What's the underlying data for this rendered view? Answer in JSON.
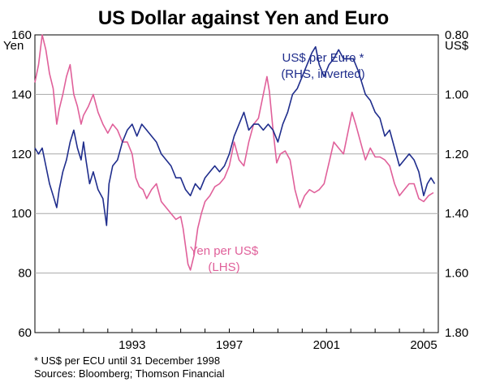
{
  "chart_data": {
    "type": "line",
    "title": "US Dollar against Yen and Euro",
    "left_axis": {
      "unit": "Yen",
      "ylim": [
        60,
        160
      ],
      "ticks": [
        60,
        80,
        100,
        120,
        140,
        160
      ],
      "tick_labels": [
        "60",
        "80",
        "100",
        "120",
        "140",
        "160"
      ]
    },
    "right_axis": {
      "unit": "US$",
      "inverted": true,
      "ylim": [
        0.8,
        1.8
      ],
      "ticks": [
        0.8,
        1.0,
        1.2,
        1.4,
        1.6,
        1.8
      ],
      "tick_labels": [
        "0.80",
        "1.00",
        "1.20",
        "1.40",
        "1.60",
        "1.80"
      ]
    },
    "x_axis": {
      "xlim": [
        1989.0,
        2005.6
      ],
      "labeled_ticks": [
        1993,
        1997,
        2001,
        2005
      ],
      "tick_labels": [
        "1993",
        "1997",
        "2001",
        "2005"
      ]
    },
    "grid": true,
    "series": [
      {
        "name": "Yen per US$",
        "sub": "(LHS)",
        "axis": "left",
        "color": "#e0609a",
        "points": [
          [
            1989.0,
            144
          ],
          [
            1989.15,
            150
          ],
          [
            1989.3,
            160
          ],
          [
            1989.45,
            155
          ],
          [
            1989.6,
            147
          ],
          [
            1989.75,
            142
          ],
          [
            1989.9,
            130
          ],
          [
            1990.0,
            135
          ],
          [
            1990.15,
            140
          ],
          [
            1990.3,
            146
          ],
          [
            1990.45,
            150
          ],
          [
            1990.6,
            140
          ],
          [
            1990.75,
            136
          ],
          [
            1990.9,
            130
          ],
          [
            1991.0,
            133
          ],
          [
            1991.2,
            136
          ],
          [
            1991.4,
            140
          ],
          [
            1991.6,
            134
          ],
          [
            1991.8,
            130
          ],
          [
            1992.0,
            127
          ],
          [
            1992.2,
            130
          ],
          [
            1992.4,
            128
          ],
          [
            1992.6,
            124
          ],
          [
            1992.8,
            124
          ],
          [
            1993.0,
            120
          ],
          [
            1993.15,
            112
          ],
          [
            1993.3,
            109
          ],
          [
            1993.45,
            108
          ],
          [
            1993.6,
            105
          ],
          [
            1993.8,
            108
          ],
          [
            1994.0,
            110
          ],
          [
            1994.2,
            104
          ],
          [
            1994.4,
            102
          ],
          [
            1994.6,
            100
          ],
          [
            1994.8,
            98
          ],
          [
            1995.0,
            99
          ],
          [
            1995.1,
            95
          ],
          [
            1995.2,
            89
          ],
          [
            1995.3,
            83
          ],
          [
            1995.4,
            81
          ],
          [
            1995.55,
            86
          ],
          [
            1995.7,
            95
          ],
          [
            1995.85,
            100
          ],
          [
            1996.0,
            104
          ],
          [
            1996.2,
            106
          ],
          [
            1996.4,
            109
          ],
          [
            1996.6,
            110
          ],
          [
            1996.8,
            112
          ],
          [
            1997.0,
            116
          ],
          [
            1997.2,
            124
          ],
          [
            1997.4,
            118
          ],
          [
            1997.6,
            116
          ],
          [
            1997.8,
            124
          ],
          [
            1998.0,
            130
          ],
          [
            1998.2,
            132
          ],
          [
            1998.4,
            140
          ],
          [
            1998.55,
            146
          ],
          [
            1998.65,
            141
          ],
          [
            1998.8,
            128
          ],
          [
            1998.95,
            117
          ],
          [
            1999.1,
            120
          ],
          [
            1999.3,
            121
          ],
          [
            1999.5,
            118
          ],
          [
            1999.7,
            108
          ],
          [
            1999.9,
            102
          ],
          [
            2000.1,
            106
          ],
          [
            2000.3,
            108
          ],
          [
            2000.5,
            107
          ],
          [
            2000.7,
            108
          ],
          [
            2000.9,
            110
          ],
          [
            2001.1,
            117
          ],
          [
            2001.3,
            124
          ],
          [
            2001.5,
            122
          ],
          [
            2001.7,
            120
          ],
          [
            2001.9,
            128
          ],
          [
            2002.05,
            134
          ],
          [
            2002.2,
            130
          ],
          [
            2002.4,
            124
          ],
          [
            2002.6,
            118
          ],
          [
            2002.8,
            122
          ],
          [
            2003.0,
            119
          ],
          [
            2003.2,
            119
          ],
          [
            2003.4,
            118
          ],
          [
            2003.6,
            116
          ],
          [
            2003.8,
            110
          ],
          [
            2004.0,
            106
          ],
          [
            2004.2,
            108
          ],
          [
            2004.4,
            110
          ],
          [
            2004.6,
            110
          ],
          [
            2004.8,
            105
          ],
          [
            2005.0,
            104
          ],
          [
            2005.2,
            106
          ],
          [
            2005.4,
            107
          ]
        ]
      },
      {
        "name": "US$ per Euro *",
        "sub": "(RHS, inverted)",
        "axis": "right",
        "color": "#1f2d8c",
        "points": [
          [
            1989.0,
            1.18
          ],
          [
            1989.15,
            1.2
          ],
          [
            1989.3,
            1.18
          ],
          [
            1989.45,
            1.24
          ],
          [
            1989.6,
            1.3
          ],
          [
            1989.75,
            1.34
          ],
          [
            1989.9,
            1.38
          ],
          [
            1990.0,
            1.32
          ],
          [
            1990.15,
            1.26
          ],
          [
            1990.3,
            1.22
          ],
          [
            1990.45,
            1.16
          ],
          [
            1990.6,
            1.12
          ],
          [
            1990.75,
            1.18
          ],
          [
            1990.9,
            1.22
          ],
          [
            1991.0,
            1.16
          ],
          [
            1991.1,
            1.22
          ],
          [
            1991.25,
            1.3
          ],
          [
            1991.4,
            1.26
          ],
          [
            1991.6,
            1.32
          ],
          [
            1991.8,
            1.35
          ],
          [
            1991.95,
            1.44
          ],
          [
            1992.05,
            1.3
          ],
          [
            1992.2,
            1.24
          ],
          [
            1992.4,
            1.22
          ],
          [
            1992.6,
            1.16
          ],
          [
            1992.8,
            1.12
          ],
          [
            1993.0,
            1.1
          ],
          [
            1993.2,
            1.14
          ],
          [
            1993.4,
            1.1
          ],
          [
            1993.6,
            1.12
          ],
          [
            1993.8,
            1.14
          ],
          [
            1994.0,
            1.16
          ],
          [
            1994.2,
            1.2
          ],
          [
            1994.4,
            1.22
          ],
          [
            1994.6,
            1.24
          ],
          [
            1994.8,
            1.28
          ],
          [
            1995.0,
            1.28
          ],
          [
            1995.2,
            1.32
          ],
          [
            1995.4,
            1.34
          ],
          [
            1995.6,
            1.3
          ],
          [
            1995.8,
            1.32
          ],
          [
            1996.0,
            1.28
          ],
          [
            1996.2,
            1.26
          ],
          [
            1996.4,
            1.24
          ],
          [
            1996.6,
            1.26
          ],
          [
            1996.8,
            1.24
          ],
          [
            1997.0,
            1.2
          ],
          [
            1997.2,
            1.14
          ],
          [
            1997.4,
            1.1
          ],
          [
            1997.6,
            1.06
          ],
          [
            1997.8,
            1.12
          ],
          [
            1998.0,
            1.1
          ],
          [
            1998.2,
            1.1
          ],
          [
            1998.4,
            1.12
          ],
          [
            1998.6,
            1.1
          ],
          [
            1998.8,
            1.12
          ],
          [
            1999.0,
            1.16
          ],
          [
            1999.2,
            1.1
          ],
          [
            1999.4,
            1.06
          ],
          [
            1999.6,
            1.0
          ],
          [
            1999.8,
            0.98
          ],
          [
            2000.0,
            0.94
          ],
          [
            2000.2,
            0.9
          ],
          [
            2000.4,
            0.86
          ],
          [
            2000.55,
            0.84
          ],
          [
            2000.7,
            0.9
          ],
          [
            2000.9,
            0.94
          ],
          [
            2001.1,
            0.9
          ],
          [
            2001.3,
            0.88
          ],
          [
            2001.5,
            0.85
          ],
          [
            2001.7,
            0.88
          ],
          [
            2001.9,
            0.88
          ],
          [
            2002.1,
            0.88
          ],
          [
            2002.3,
            0.92
          ],
          [
            2002.45,
            0.96
          ],
          [
            2002.6,
            1.0
          ],
          [
            2002.8,
            1.02
          ],
          [
            2003.0,
            1.06
          ],
          [
            2003.2,
            1.08
          ],
          [
            2003.4,
            1.14
          ],
          [
            2003.6,
            1.12
          ],
          [
            2003.8,
            1.18
          ],
          [
            2004.0,
            1.24
          ],
          [
            2004.2,
            1.22
          ],
          [
            2004.4,
            1.2
          ],
          [
            2004.6,
            1.22
          ],
          [
            2004.8,
            1.26
          ],
          [
            2005.0,
            1.34
          ],
          [
            2005.15,
            1.3
          ],
          [
            2005.3,
            1.28
          ],
          [
            2005.45,
            1.3
          ]
        ]
      }
    ]
  },
  "footnotes": {
    "note": "*  US$ per ECU until 31 December 1998",
    "sources": "Sources: Bloomberg; Thomson Financial"
  }
}
